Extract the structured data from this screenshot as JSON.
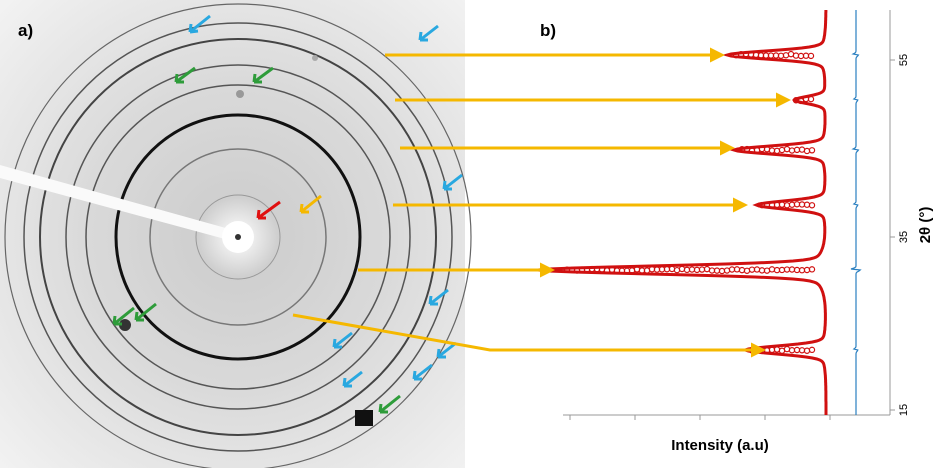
{
  "panel_a": {
    "label": "a)"
  },
  "panel_b": {
    "label": "b)",
    "x_axis_label": "Intensity (a.u)",
    "y_axis_label": "2θ (°)",
    "y_tick_labels": [
      "15",
      "35",
      "55"
    ]
  }
}
